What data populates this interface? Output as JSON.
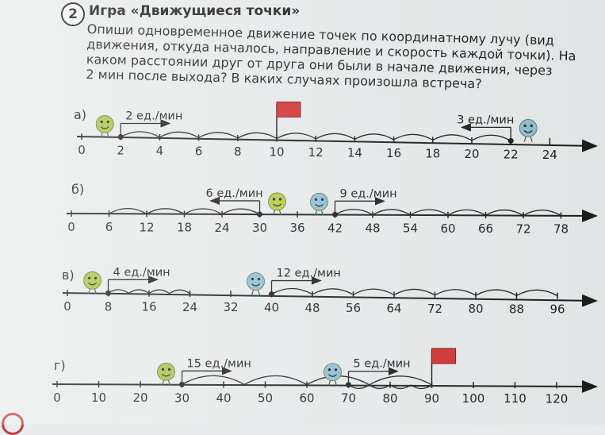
{
  "task": {
    "number": "2",
    "title": "Игра «Движущиеся точки»",
    "lines": [
      "Опиши одновременное движение точек по координатному лучу (вид",
      "движения, откуда началось, направление и скорость каждой точки). На",
      "каком расстоянии друг от друга они были в начале движения, через",
      "2 мин после выхода? В каких случаях произошла встреча?"
    ]
  },
  "rows": [
    {
      "label": "а)",
      "ticks": [
        "0",
        "2",
        "4",
        "6",
        "8",
        "10",
        "12",
        "14",
        "16",
        "18",
        "20",
        "22",
        "24"
      ],
      "arcs_top": [
        [
          1,
          2
        ],
        [
          2,
          3
        ],
        [
          3,
          4
        ],
        [
          4,
          5
        ],
        [
          5,
          6
        ],
        [
          6,
          7
        ],
        [
          7,
          8
        ],
        [
          8,
          9
        ],
        [
          9,
          10
        ],
        [
          10,
          11
        ]
      ],
      "arcs_bottom": [],
      "flag": 5,
      "points": [
        {
          "name": "left-point",
          "at": 1,
          "speed": "2 ед./мин",
          "direction": "right",
          "face": "#a8c642"
        },
        {
          "name": "right-point",
          "at": 11,
          "speed": "3 ед./мин",
          "direction": "left",
          "face": "#8ec0d6"
        }
      ]
    },
    {
      "label": "б)",
      "ticks": [
        "0",
        "6",
        "12",
        "18",
        "24",
        "30",
        "36",
        "42",
        "48",
        "54",
        "60",
        "66",
        "72",
        "78"
      ],
      "arcs_top": [
        [
          1,
          2
        ],
        [
          2,
          3
        ],
        [
          3,
          4
        ],
        [
          4,
          5
        ],
        [
          7,
          8
        ],
        [
          8,
          9
        ],
        [
          9,
          10
        ],
        [
          10,
          11
        ],
        [
          11,
          12
        ],
        [
          12,
          13
        ]
      ],
      "arcs_bottom": [],
      "flag": null,
      "points": [
        {
          "name": "left-point",
          "at": 5,
          "speed": "6 ед./мин",
          "direction": "left",
          "face": "#b8cc3c"
        },
        {
          "name": "right-point",
          "at": 7,
          "speed": "9 ед./мин",
          "direction": "right",
          "face": "#8ec0d6"
        }
      ]
    },
    {
      "label": "в)",
      "ticks": [
        "0",
        "8",
        "16",
        "24",
        "32",
        "40",
        "48",
        "56",
        "64",
        "72",
        "80",
        "88",
        "96"
      ],
      "arcs_top": [
        [
          1,
          1.5
        ],
        [
          1.5,
          2
        ],
        [
          2,
          2.5
        ],
        [
          2.5,
          3
        ],
        [
          5,
          6
        ],
        [
          6,
          7
        ],
        [
          7,
          8
        ],
        [
          8,
          9
        ],
        [
          9,
          10
        ],
        [
          10,
          11
        ],
        [
          11,
          12
        ]
      ],
      "arcs_bottom": [],
      "flag": null,
      "points": [
        {
          "name": "left-point",
          "at": 1,
          "speed": "4 ед./мин",
          "direction": "right",
          "face": "#a8c642"
        },
        {
          "name": "right-point",
          "at": 5,
          "speed": "12 ед./мин",
          "direction": "right",
          "face": "#8ec0d6"
        }
      ]
    },
    {
      "label": "г)",
      "ticks": [
        "0",
        "10",
        "20",
        "30",
        "40",
        "50",
        "60",
        "70",
        "80",
        "90",
        "100",
        "110",
        "120"
      ],
      "arcs_top": [
        [
          3,
          4.5
        ],
        [
          4.5,
          6
        ],
        [
          6,
          7.5
        ],
        [
          7.5,
          9
        ]
      ],
      "arcs_bottom": [
        [
          7,
          7.5
        ],
        [
          7.5,
          8
        ],
        [
          8,
          8.5
        ],
        [
          8.5,
          9
        ]
      ],
      "flag": 9,
      "points": [
        {
          "name": "left-point",
          "at": 3,
          "speed": "15 ед./мин",
          "direction": "right",
          "face": "#a8c642"
        },
        {
          "name": "right-point",
          "at": 7,
          "speed": "5 ед./мин",
          "direction": "right",
          "face": "#8ec0d6"
        }
      ]
    }
  ]
}
